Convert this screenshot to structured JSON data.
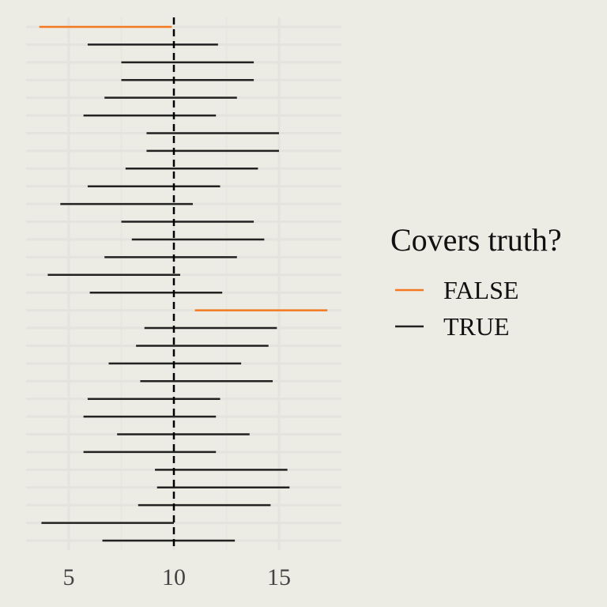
{
  "chart_data": {
    "type": "interval",
    "xlim": [
      3,
      18
    ],
    "x_ticks": [
      5,
      10,
      15
    ],
    "reference_line": 10,
    "grid": true,
    "legend_position": "right",
    "legend": {
      "title": "Covers truth?",
      "entries": [
        {
          "label": "FALSE",
          "color": "#f47920"
        },
        {
          "label": "TRUE",
          "color": "#222222"
        }
      ]
    },
    "intervals": [
      {
        "lower": 3.6,
        "upper": 9.9,
        "covers": "FALSE"
      },
      {
        "lower": 5.9,
        "upper": 12.1,
        "covers": "TRUE"
      },
      {
        "lower": 7.5,
        "upper": 13.8,
        "covers": "TRUE"
      },
      {
        "lower": 7.5,
        "upper": 13.8,
        "covers": "TRUE"
      },
      {
        "lower": 6.7,
        "upper": 13.0,
        "covers": "TRUE"
      },
      {
        "lower": 5.7,
        "upper": 12.0,
        "covers": "TRUE"
      },
      {
        "lower": 8.7,
        "upper": 15.0,
        "covers": "TRUE"
      },
      {
        "lower": 8.7,
        "upper": 15.0,
        "covers": "TRUE"
      },
      {
        "lower": 7.7,
        "upper": 14.0,
        "covers": "TRUE"
      },
      {
        "lower": 5.9,
        "upper": 12.2,
        "covers": "TRUE"
      },
      {
        "lower": 4.6,
        "upper": 10.9,
        "covers": "TRUE"
      },
      {
        "lower": 7.5,
        "upper": 13.8,
        "covers": "TRUE"
      },
      {
        "lower": 8.0,
        "upper": 14.3,
        "covers": "TRUE"
      },
      {
        "lower": 6.7,
        "upper": 13.0,
        "covers": "TRUE"
      },
      {
        "lower": 4.0,
        "upper": 10.3,
        "covers": "TRUE"
      },
      {
        "lower": 6.0,
        "upper": 12.3,
        "covers": "TRUE"
      },
      {
        "lower": 11.0,
        "upper": 17.3,
        "covers": "FALSE"
      },
      {
        "lower": 8.6,
        "upper": 14.9,
        "covers": "TRUE"
      },
      {
        "lower": 8.2,
        "upper": 14.5,
        "covers": "TRUE"
      },
      {
        "lower": 6.9,
        "upper": 13.2,
        "covers": "TRUE"
      },
      {
        "lower": 8.4,
        "upper": 14.7,
        "covers": "TRUE"
      },
      {
        "lower": 5.9,
        "upper": 12.2,
        "covers": "TRUE"
      },
      {
        "lower": 5.7,
        "upper": 12.0,
        "covers": "TRUE"
      },
      {
        "lower": 7.3,
        "upper": 13.6,
        "covers": "TRUE"
      },
      {
        "lower": 5.7,
        "upper": 12.0,
        "covers": "TRUE"
      },
      {
        "lower": 9.1,
        "upper": 15.4,
        "covers": "TRUE"
      },
      {
        "lower": 9.2,
        "upper": 15.5,
        "covers": "TRUE"
      },
      {
        "lower": 8.3,
        "upper": 14.6,
        "covers": "TRUE"
      },
      {
        "lower": 3.7,
        "upper": 10.0,
        "covers": "TRUE"
      },
      {
        "lower": 6.6,
        "upper": 12.9,
        "covers": "TRUE"
      }
    ]
  }
}
